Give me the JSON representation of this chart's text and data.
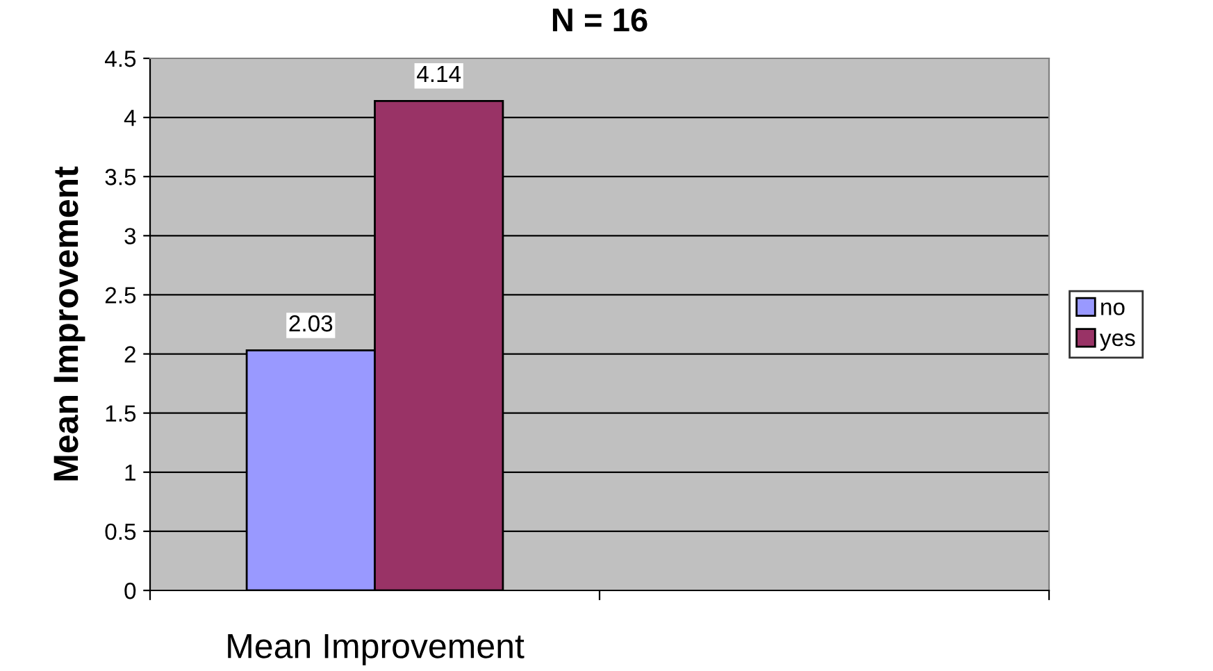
{
  "chart_data": {
    "type": "bar",
    "title": "N = 16",
    "ylabel": "Mean Improvement",
    "categories": [
      "Mean Improvement",
      null
    ],
    "series": [
      {
        "name": "no",
        "color": "#9999ff",
        "values": [
          2.03,
          null
        ]
      },
      {
        "name": "yes",
        "color": "#993366",
        "values": [
          4.14,
          null
        ]
      }
    ],
    "ylim": [
      0,
      4.5
    ],
    "yticks": [
      0,
      0.5,
      1,
      1.5,
      2,
      2.5,
      3,
      3.5,
      4,
      4.5
    ],
    "grid": "y",
    "legend": "right",
    "data_labels": true
  }
}
